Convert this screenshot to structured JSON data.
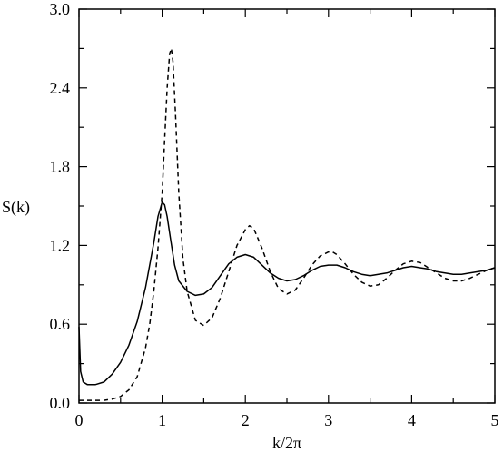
{
  "chart_data": {
    "type": "line",
    "title": "",
    "xlabel": "k/2π",
    "ylabel": "S(k)",
    "xlim": [
      0,
      5
    ],
    "ylim": [
      0,
      3.0
    ],
    "xticks": [
      "0",
      "1",
      "2",
      "3",
      "4",
      "5"
    ],
    "yticks": [
      "0.0",
      "0.6",
      "1.2",
      "1.8",
      "2.4",
      "3.0"
    ],
    "grid": false,
    "legend": "none",
    "series": [
      {
        "style": "solid",
        "color": "#000000",
        "x": [
          0.0,
          0.02,
          0.05,
          0.1,
          0.2,
          0.3,
          0.4,
          0.5,
          0.6,
          0.7,
          0.8,
          0.9,
          0.95,
          1.0,
          1.03,
          1.06,
          1.1,
          1.15,
          1.2,
          1.3,
          1.4,
          1.5,
          1.6,
          1.7,
          1.8,
          1.9,
          2.0,
          2.1,
          2.2,
          2.3,
          2.4,
          2.5,
          2.6,
          2.7,
          2.8,
          2.9,
          3.0,
          3.1,
          3.2,
          3.3,
          3.4,
          3.5,
          3.6,
          3.7,
          3.8,
          3.9,
          4.0,
          4.1,
          4.2,
          4.3,
          4.4,
          4.5,
          4.6,
          4.7,
          4.8,
          4.9,
          5.0
        ],
        "y": [
          0.58,
          0.24,
          0.16,
          0.14,
          0.14,
          0.16,
          0.22,
          0.31,
          0.44,
          0.62,
          0.88,
          1.22,
          1.42,
          1.53,
          1.51,
          1.42,
          1.25,
          1.05,
          0.93,
          0.85,
          0.82,
          0.83,
          0.88,
          0.97,
          1.06,
          1.11,
          1.13,
          1.11,
          1.05,
          0.99,
          0.95,
          0.93,
          0.94,
          0.97,
          1.01,
          1.04,
          1.05,
          1.05,
          1.03,
          1.0,
          0.98,
          0.97,
          0.98,
          0.99,
          1.01,
          1.03,
          1.04,
          1.03,
          1.02,
          1.0,
          0.99,
          0.98,
          0.98,
          0.99,
          1.0,
          1.01,
          1.03
        ]
      },
      {
        "style": "dashed",
        "color": "#000000",
        "x": [
          0.0,
          0.1,
          0.2,
          0.3,
          0.4,
          0.5,
          0.6,
          0.7,
          0.8,
          0.85,
          0.9,
          0.95,
          1.0,
          1.03,
          1.06,
          1.09,
          1.11,
          1.13,
          1.16,
          1.2,
          1.25,
          1.3,
          1.4,
          1.5,
          1.6,
          1.7,
          1.8,
          1.9,
          2.0,
          2.05,
          2.1,
          2.2,
          2.3,
          2.4,
          2.5,
          2.6,
          2.7,
          2.8,
          2.9,
          3.0,
          3.05,
          3.1,
          3.2,
          3.3,
          3.4,
          3.5,
          3.6,
          3.7,
          3.8,
          3.9,
          4.0,
          4.1,
          4.2,
          4.3,
          4.4,
          4.5,
          4.6,
          4.7,
          4.8,
          4.9,
          5.0
        ],
        "y": [
          0.02,
          0.02,
          0.02,
          0.02,
          0.03,
          0.05,
          0.1,
          0.2,
          0.42,
          0.6,
          0.85,
          1.18,
          1.6,
          2.0,
          2.4,
          2.66,
          2.7,
          2.6,
          2.2,
          1.6,
          1.1,
          0.85,
          0.63,
          0.59,
          0.65,
          0.8,
          1.0,
          1.2,
          1.32,
          1.35,
          1.33,
          1.18,
          1.0,
          0.87,
          0.83,
          0.86,
          0.95,
          1.05,
          1.12,
          1.15,
          1.15,
          1.13,
          1.06,
          0.98,
          0.92,
          0.89,
          0.9,
          0.95,
          1.01,
          1.06,
          1.08,
          1.07,
          1.03,
          0.99,
          0.95,
          0.93,
          0.93,
          0.95,
          0.98,
          1.01,
          1.03
        ]
      }
    ]
  }
}
